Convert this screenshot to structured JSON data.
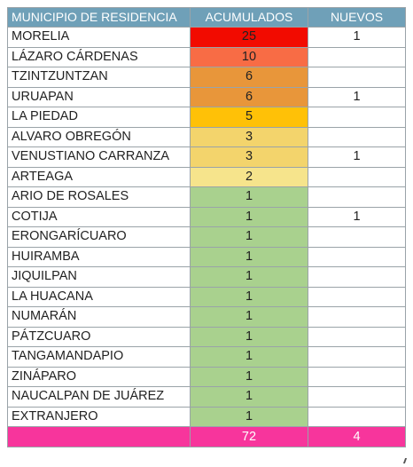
{
  "header": {
    "municipio": "MUNICIPIO DE RESIDENCIA",
    "acumulados": "ACUMULADOS",
    "nuevos": "NUEVOS"
  },
  "rows": [
    {
      "municipio": "MORELIA",
      "acumulados": "25",
      "nuevos": "1",
      "color": "#f20b00"
    },
    {
      "municipio": "LÁZARO CÁRDENAS",
      "acumulados": "10",
      "nuevos": "",
      "color": "#f86c45"
    },
    {
      "municipio": "TZINTZUNTZAN",
      "acumulados": "6",
      "nuevos": "",
      "color": "#e8963a"
    },
    {
      "municipio": "URUAPAN",
      "acumulados": "6",
      "nuevos": "1",
      "color": "#e8963a"
    },
    {
      "municipio": "LA PIEDAD",
      "acumulados": "5",
      "nuevos": "",
      "color": "#ffc107"
    },
    {
      "municipio": "ALVARO OBREGÓN",
      "acumulados": "3",
      "nuevos": "",
      "color": "#f3d46c"
    },
    {
      "municipio": "VENUSTIANO CARRANZA",
      "acumulados": "3",
      "nuevos": "1",
      "color": "#f3d46c"
    },
    {
      "municipio": "ARTEAGA",
      "acumulados": "2",
      "nuevos": "",
      "color": "#f6e48c"
    },
    {
      "municipio": "ARIO DE ROSALES",
      "acumulados": "1",
      "nuevos": "",
      "color": "#a9d18e"
    },
    {
      "municipio": "COTIJA",
      "acumulados": "1",
      "nuevos": "1",
      "color": "#a9d18e"
    },
    {
      "municipio": "ERONGARÍCUARO",
      "acumulados": "1",
      "nuevos": "",
      "color": "#a9d18e"
    },
    {
      "municipio": "HUIRAMBA",
      "acumulados": "1",
      "nuevos": "",
      "color": "#a9d18e"
    },
    {
      "municipio": "JIQUILPAN",
      "acumulados": "1",
      "nuevos": "",
      "color": "#a9d18e"
    },
    {
      "municipio": "LA HUACANA",
      "acumulados": "1",
      "nuevos": "",
      "color": "#a9d18e"
    },
    {
      "municipio": "NUMARÁN",
      "acumulados": "1",
      "nuevos": "",
      "color": "#a9d18e"
    },
    {
      "municipio": "PÁTZCUARO",
      "acumulados": "1",
      "nuevos": "",
      "color": "#a9d18e"
    },
    {
      "municipio": "TANGAMANDAPIO",
      "acumulados": "1",
      "nuevos": "",
      "color": "#a9d18e"
    },
    {
      "municipio": "ZINÁPARO",
      "acumulados": "1",
      "nuevos": "",
      "color": "#a9d18e"
    },
    {
      "municipio": "NAUCALPAN DE JUÁREZ",
      "acumulados": "1",
      "nuevos": "",
      "color": "#a9d18e"
    },
    {
      "municipio": "EXTRANJERO",
      "acumulados": "1",
      "nuevos": "",
      "color": "#a9d18e"
    }
  ],
  "total": {
    "municipio": "",
    "acumulados": "72",
    "nuevos": "4"
  },
  "colors": {
    "header": "#6fa0b8",
    "total": "#f7359c"
  }
}
